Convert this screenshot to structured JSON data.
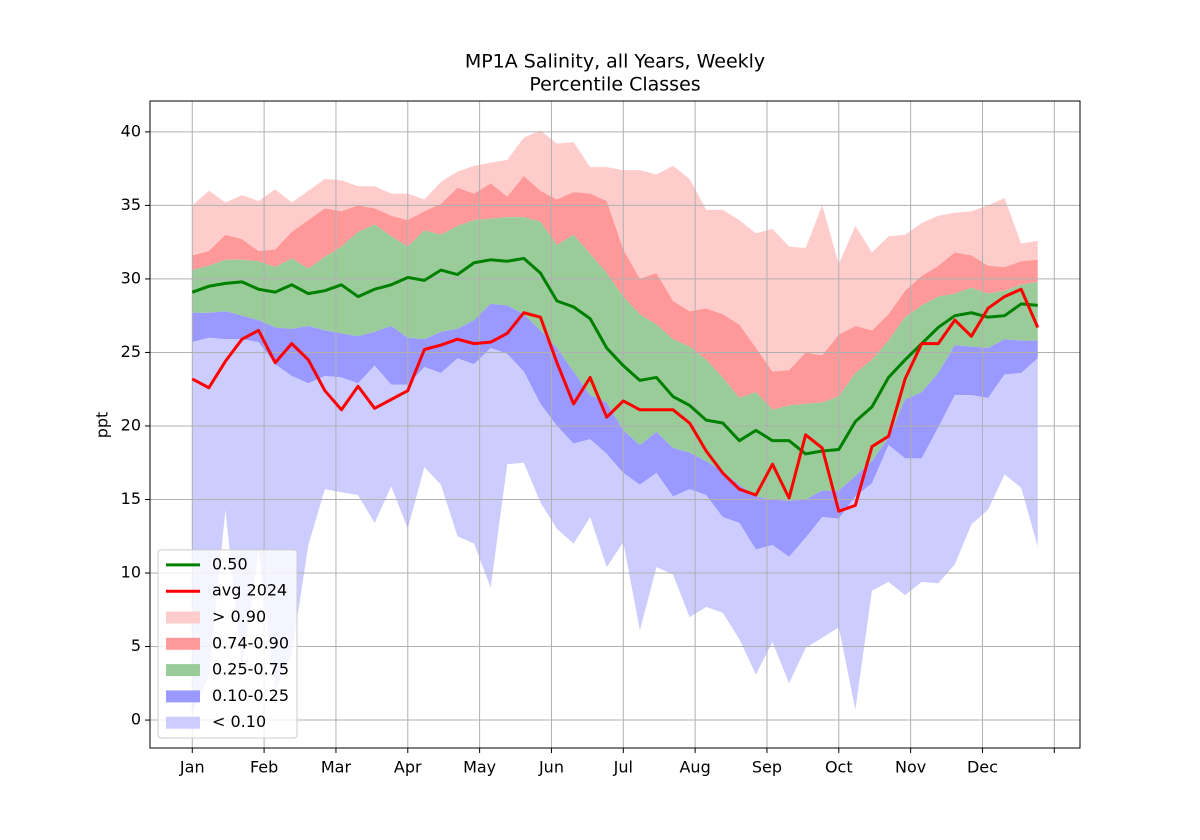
{
  "chart_data": {
    "type": "area",
    "title": "MP1A Salinity, all Years, Weekly",
    "subtitle": "Percentile Classes",
    "ylabel": "ppt",
    "x": [
      1,
      2,
      3,
      4,
      5,
      6,
      7,
      8,
      9,
      10,
      11,
      12,
      13,
      14,
      15,
      16,
      17,
      18,
      19,
      20,
      21,
      22,
      23,
      24,
      25,
      26,
      27,
      28,
      29,
      30,
      31,
      32,
      33,
      34,
      35,
      36,
      37,
      38,
      39,
      40,
      41,
      42,
      43,
      44,
      45,
      46,
      47,
      48,
      49,
      50,
      51,
      52
    ],
    "xlim": [
      -1.55,
      54.55
    ],
    "ylim": [
      -1.9,
      42.1
    ],
    "xticks": [
      {
        "value": 1,
        "label": "Jan"
      },
      {
        "value": 5.333,
        "label": "Feb"
      },
      {
        "value": 9.667,
        "label": "Mar"
      },
      {
        "value": 14,
        "label": "Apr"
      },
      {
        "value": 18.333,
        "label": "May"
      },
      {
        "value": 22.667,
        "label": "Jun"
      },
      {
        "value": 27,
        "label": "Jul"
      },
      {
        "value": 31.333,
        "label": "Aug"
      },
      {
        "value": 35.667,
        "label": "Sep"
      },
      {
        "value": 40,
        "label": "Oct"
      },
      {
        "value": 44.333,
        "label": "Nov"
      },
      {
        "value": 48.667,
        "label": "Dec"
      },
      {
        "value": 53,
        "label": null
      }
    ],
    "yticks": [
      0,
      5,
      10,
      15,
      20,
      25,
      30,
      35,
      40
    ],
    "grid": true,
    "legend": "lower left",
    "series": [
      {
        "name": "0.50",
        "color": "#008000",
        "values": [
          29.1,
          29.5,
          29.7,
          29.8,
          29.3,
          29.1,
          29.6,
          29.0,
          29.2,
          29.6,
          28.8,
          29.3,
          29.6,
          30.1,
          29.9,
          30.6,
          30.3,
          31.1,
          31.3,
          31.2,
          31.4,
          30.4,
          28.5,
          28.1,
          27.3,
          25.3,
          24.1,
          23.1,
          23.3,
          22.0,
          21.4,
          20.4,
          20.2,
          19.0,
          19.7,
          19.0,
          19.0,
          18.1,
          18.3,
          18.4,
          20.3,
          21.3,
          23.3,
          24.5,
          25.6,
          26.7,
          27.5,
          27.7,
          27.4,
          27.5,
          28.3,
          28.2
        ]
      },
      {
        "name": "avg 2024",
        "color": "#ff0000",
        "values": [
          23.2,
          22.6,
          24.4,
          25.9,
          26.5,
          24.3,
          25.6,
          24.5,
          22.4,
          21.1,
          22.7,
          21.2,
          21.8,
          22.4,
          25.2,
          25.5,
          25.9,
          25.6,
          25.7,
          26.3,
          27.7,
          27.4,
          24.3,
          21.5,
          23.3,
          20.6,
          21.7,
          21.1,
          21.1,
          21.1,
          20.2,
          18.3,
          16.8,
          15.7,
          15.3,
          17.4,
          15.1,
          19.4,
          18.5,
          14.2,
          14.6,
          18.6,
          19.3,
          23.2,
          25.6,
          25.6,
          27.2,
          26.1,
          28.0,
          28.8,
          29.3,
          26.7
        ]
      }
    ],
    "bands": [
      {
        "name": "> 0.90",
        "color": "#ffcccc",
        "upper": [
          35.0,
          36.0,
          35.2,
          35.7,
          35.3,
          36.1,
          35.2,
          36.0,
          36.8,
          36.7,
          36.3,
          36.3,
          35.8,
          35.8,
          35.4,
          36.6,
          37.3,
          37.7,
          37.9,
          38.1,
          39.6,
          40.1,
          39.2,
          39.3,
          37.6,
          37.6,
          37.4,
          37.4,
          37.1,
          37.7,
          36.8,
          34.7,
          34.7,
          34.0,
          33.1,
          33.4,
          32.2,
          32.1,
          35.0,
          31.0,
          33.6,
          31.8,
          32.9,
          33.0,
          33.8,
          34.3,
          34.5,
          34.6,
          35.0,
          35.5,
          32.4,
          32.6
        ],
        "lower": [
          31.6,
          31.9,
          33.0,
          32.7,
          31.9,
          32.0,
          33.2,
          34.0,
          34.8,
          34.6,
          35.0,
          34.8,
          34.3,
          34.0,
          34.6,
          35.1,
          36.2,
          35.8,
          36.5,
          35.6,
          37.0,
          36.0,
          35.4,
          35.9,
          35.8,
          35.3,
          32.0,
          30.0,
          30.4,
          28.5,
          27.8,
          28.0,
          27.6,
          26.9,
          25.3,
          23.7,
          23.8,
          25.0,
          24.8,
          26.2,
          26.8,
          26.5,
          27.6,
          29.2,
          30.2,
          30.9,
          31.8,
          31.6,
          30.9,
          30.8,
          31.2,
          31.3
        ]
      },
      {
        "name": "0.74-0.90",
        "color": "#ff9999",
        "upper": [
          31.6,
          31.9,
          33.0,
          32.7,
          31.9,
          32.0,
          33.2,
          34.0,
          34.8,
          34.6,
          35.0,
          34.8,
          34.3,
          34.0,
          34.6,
          35.1,
          36.2,
          35.8,
          36.5,
          35.6,
          37.0,
          36.0,
          35.4,
          35.9,
          35.8,
          35.3,
          32.0,
          30.0,
          30.4,
          28.5,
          27.8,
          28.0,
          27.6,
          26.9,
          25.3,
          23.7,
          23.8,
          25.0,
          24.8,
          26.2,
          26.8,
          26.5,
          27.6,
          29.2,
          30.2,
          30.9,
          31.8,
          31.6,
          30.9,
          30.8,
          31.2,
          31.3
        ],
        "lower": [
          30.6,
          30.9,
          31.3,
          31.3,
          31.2,
          30.8,
          31.4,
          30.7,
          31.5,
          32.2,
          33.2,
          33.7,
          32.9,
          32.2,
          33.3,
          33.0,
          33.6,
          34.0,
          34.1,
          34.2,
          34.2,
          33.9,
          32.3,
          33.0,
          31.7,
          30.4,
          28.8,
          27.6,
          26.9,
          25.9,
          25.4,
          24.5,
          23.3,
          21.9,
          22.3,
          21.1,
          21.4,
          21.5,
          21.6,
          22.0,
          23.6,
          24.5,
          25.8,
          27.4,
          28.2,
          28.8,
          29.0,
          29.4,
          29.0,
          29.2,
          29.6,
          29.8
        ]
      },
      {
        "name": "0.25-0.75",
        "color": "#99cc99",
        "upper": [
          30.6,
          30.9,
          31.3,
          31.3,
          31.2,
          30.8,
          31.4,
          30.7,
          31.5,
          32.2,
          33.2,
          33.7,
          32.9,
          32.2,
          33.3,
          33.0,
          33.6,
          34.0,
          34.1,
          34.2,
          34.2,
          33.9,
          32.3,
          33.0,
          31.7,
          30.4,
          28.8,
          27.6,
          26.9,
          25.9,
          25.4,
          24.5,
          23.3,
          21.9,
          22.3,
          21.1,
          21.4,
          21.5,
          21.6,
          22.0,
          23.6,
          24.5,
          25.8,
          27.4,
          28.2,
          28.8,
          29.0,
          29.4,
          29.0,
          29.2,
          29.6,
          29.8
        ],
        "lower": [
          27.7,
          27.7,
          27.8,
          27.5,
          27.2,
          26.7,
          26.6,
          26.8,
          26.5,
          26.3,
          26.1,
          26.4,
          26.8,
          26.0,
          25.9,
          26.4,
          26.6,
          27.2,
          28.3,
          28.2,
          27.6,
          26.5,
          25.3,
          23.7,
          22.1,
          21.6,
          19.7,
          18.7,
          19.6,
          18.5,
          18.2,
          17.6,
          16.9,
          16.0,
          15.2,
          15.0,
          14.9,
          15.0,
          15.6,
          15.6,
          16.6,
          17.6,
          19.2,
          21.8,
          22.3,
          23.6,
          25.5,
          25.4,
          25.3,
          25.9,
          25.8,
          25.8
        ]
      },
      {
        "name": "0.10-0.25",
        "color": "#9999ff",
        "upper": [
          27.7,
          27.7,
          27.8,
          27.5,
          27.2,
          26.7,
          26.6,
          26.8,
          26.5,
          26.3,
          26.1,
          26.4,
          26.8,
          26.0,
          25.9,
          26.4,
          26.6,
          27.2,
          28.3,
          28.2,
          27.6,
          26.5,
          25.3,
          23.7,
          22.1,
          21.6,
          19.7,
          18.7,
          19.6,
          18.5,
          18.2,
          17.6,
          16.9,
          16.0,
          15.2,
          15.0,
          14.9,
          15.0,
          15.6,
          15.6,
          16.6,
          17.6,
          19.2,
          21.8,
          22.3,
          23.6,
          25.5,
          25.4,
          25.3,
          25.9,
          25.8,
          25.8
        ],
        "lower": [
          25.7,
          26.0,
          25.9,
          25.9,
          25.7,
          24.2,
          23.4,
          22.9,
          23.4,
          23.3,
          22.9,
          24.1,
          22.8,
          22.8,
          24.0,
          23.6,
          24.6,
          24.2,
          25.3,
          24.9,
          23.7,
          21.5,
          20.0,
          18.8,
          19.1,
          18.1,
          16.8,
          16.0,
          16.8,
          15.2,
          15.7,
          15.3,
          13.8,
          13.4,
          11.6,
          11.9,
          11.1,
          12.4,
          13.8,
          13.7,
          15.2,
          16.1,
          18.7,
          17.8,
          17.8,
          19.9,
          22.1,
          22.1,
          21.9,
          23.5,
          23.6,
          24.6
        ]
      },
      {
        "name": "< 0.10",
        "color": "#ccccff",
        "upper": [
          25.7,
          26.0,
          25.9,
          25.9,
          25.7,
          24.2,
          23.4,
          22.9,
          23.4,
          23.3,
          22.9,
          24.1,
          22.8,
          22.8,
          24.0,
          23.6,
          24.6,
          24.2,
          25.3,
          24.9,
          23.7,
          21.5,
          20.0,
          18.8,
          19.1,
          18.1,
          16.8,
          16.0,
          16.8,
          15.2,
          15.7,
          15.3,
          13.8,
          13.4,
          11.6,
          11.9,
          11.1,
          12.4,
          13.8,
          13.7,
          15.2,
          16.1,
          18.7,
          17.8,
          17.8,
          19.9,
          22.1,
          22.1,
          21.9,
          23.5,
          23.6,
          24.6
        ],
        "lower": [
          0.5,
          3.0,
          14.3,
          3.6,
          11.5,
          2.0,
          4.5,
          11.9,
          15.7,
          15.5,
          15.3,
          13.4,
          15.9,
          13.0,
          17.2,
          16.0,
          12.5,
          12.0,
          9.0,
          17.4,
          17.5,
          14.8,
          13.0,
          12.0,
          13.8,
          10.4,
          12.1,
          6.1,
          10.4,
          9.9,
          7.0,
          7.7,
          7.3,
          5.5,
          3.1,
          5.3,
          2.5,
          4.9,
          5.6,
          6.3,
          0.7,
          8.8,
          9.4,
          8.5,
          9.4,
          9.3,
          10.6,
          13.3,
          14.3,
          16.7,
          15.8,
          11.8
        ]
      }
    ]
  }
}
